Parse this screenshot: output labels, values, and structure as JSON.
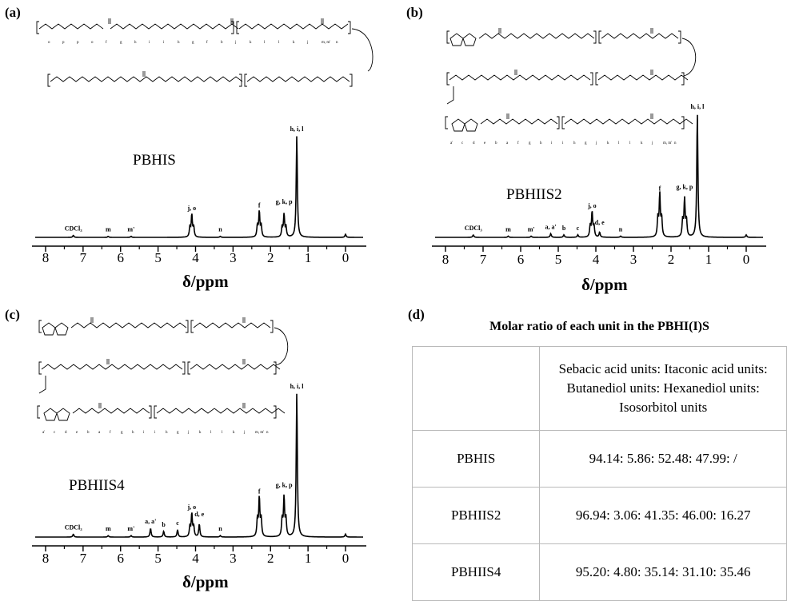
{
  "panels": [
    {
      "label": "(a)",
      "sample": "PBHIS",
      "axis_title": "δ/ppm",
      "ticks": [
        "8",
        "7",
        "6",
        "5",
        "4",
        "3",
        "2",
        "1",
        "0"
      ],
      "peak_labels": [
        {
          "text": "CDCl₃",
          "ppm": 7.26
        },
        {
          "text": "m",
          "ppm": 6.33
        },
        {
          "text": "m'",
          "ppm": 5.72
        },
        {
          "text": "j, o",
          "ppm": 4.1
        },
        {
          "text": "n",
          "ppm": 3.34
        },
        {
          "text": "f",
          "ppm": 2.3
        },
        {
          "text": "g, k, p",
          "ppm": 1.64
        },
        {
          "text": "h, i, l",
          "ppm": 1.3
        }
      ]
    },
    {
      "label": "(b)",
      "sample": "PBHIIS2",
      "axis_title": "δ/ppm",
      "ticks": [
        "8",
        "7",
        "6",
        "5",
        "4",
        "3",
        "2",
        "1",
        "0"
      ],
      "peak_labels": [
        {
          "text": "CDCl₃",
          "ppm": 7.26
        },
        {
          "text": "m",
          "ppm": 6.33
        },
        {
          "text": "m'",
          "ppm": 5.72
        },
        {
          "text": "a, a'",
          "ppm": 5.2
        },
        {
          "text": "b",
          "ppm": 4.85
        },
        {
          "text": "c",
          "ppm": 4.48
        },
        {
          "text": "j, o",
          "ppm": 4.1
        },
        {
          "text": "d, e",
          "ppm": 3.9
        },
        {
          "text": "n",
          "ppm": 3.34
        },
        {
          "text": "f",
          "ppm": 2.3
        },
        {
          "text": "g, k, p",
          "ppm": 1.64
        },
        {
          "text": "h, i, l",
          "ppm": 1.3
        }
      ]
    },
    {
      "label": "(c)",
      "sample": "PBHIIS4",
      "axis_title": "δ/ppm",
      "ticks": [
        "8",
        "7",
        "6",
        "5",
        "4",
        "3",
        "2",
        "1",
        "0"
      ],
      "peak_labels": [
        {
          "text": "CDCl₃",
          "ppm": 7.26
        },
        {
          "text": "m",
          "ppm": 6.33
        },
        {
          "text": "m'",
          "ppm": 5.72
        },
        {
          "text": "a, a'",
          "ppm": 5.2
        },
        {
          "text": "b",
          "ppm": 4.85
        },
        {
          "text": "c",
          "ppm": 4.48
        },
        {
          "text": "j, o",
          "ppm": 4.1
        },
        {
          "text": "d, e",
          "ppm": 3.9
        },
        {
          "text": "n",
          "ppm": 3.34
        },
        {
          "text": "f",
          "ppm": 2.3
        },
        {
          "text": "g, k, p",
          "ppm": 1.64
        },
        {
          "text": "h, i, l",
          "ppm": 1.3
        }
      ]
    }
  ],
  "structure_labels": {
    "a": [
      "o",
      "p",
      "p",
      "o",
      "f",
      "g",
      "h",
      "i",
      "i",
      "h",
      "g",
      "f",
      "b",
      "j",
      "k",
      "l",
      "l",
      "k",
      "j",
      "m, m'",
      "n"
    ],
    "b": [
      "a'",
      "c",
      "d",
      "e",
      "b",
      "a",
      "f",
      "g",
      "h",
      "i",
      "i",
      "h",
      "g",
      "j",
      "k",
      "l",
      "l",
      "k",
      "j",
      "m, m'",
      "n"
    ],
    "c": [
      "a'",
      "c",
      "d",
      "e",
      "b",
      "a",
      "f",
      "g",
      "h",
      "i",
      "i",
      "h",
      "g",
      "j",
      "k",
      "l",
      "l",
      "k",
      "j",
      "m, m'",
      "n"
    ]
  },
  "table": {
    "label": "(d)",
    "title": "Molar ratio of each unit in the PBHI(I)S",
    "header": [
      "",
      "Sebacic acid units: Itaconic acid units: Butanediol units: Hexanediol units: Isosorbitol units"
    ],
    "rows": [
      {
        "sample": "PBHIS",
        "ratio": "94.14: 5.86: 52.48: 47.99: /"
      },
      {
        "sample": "PBHIIS2",
        "ratio": "96.94: 3.06: 41.35: 46.00: 16.27"
      },
      {
        "sample": "PBHIIS4",
        "ratio": "95.20: 4.80: 35.14: 31.10: 35.46"
      }
    ]
  },
  "chart_data": [
    {
      "type": "line",
      "title": "PBHIS",
      "xlabel": "δ/ppm",
      "ylabel": "",
      "xlim": [
        8,
        0
      ],
      "x_reversed": true,
      "x_ticks": [
        8,
        7,
        6,
        5,
        4,
        3,
        2,
        1,
        0
      ],
      "peaks": [
        {
          "ppm": 7.26,
          "height": 0.02,
          "label": "CDCl₃"
        },
        {
          "ppm": 6.33,
          "height": 0.01,
          "label": "m"
        },
        {
          "ppm": 5.72,
          "height": 0.01,
          "label": "m'"
        },
        {
          "ppm": 4.1,
          "height": 0.22,
          "label": "j, o"
        },
        {
          "ppm": 3.34,
          "height": 0.01,
          "label": "n"
        },
        {
          "ppm": 2.3,
          "height": 0.25,
          "label": "f"
        },
        {
          "ppm": 1.64,
          "height": 0.22,
          "label": "g, k, p"
        },
        {
          "ppm": 1.3,
          "height": 1.0,
          "label": "h, i, l"
        },
        {
          "ppm": 0.0,
          "height": 0.03,
          "label": ""
        }
      ]
    },
    {
      "type": "line",
      "title": "PBHIIS2",
      "xlabel": "δ/ppm",
      "ylabel": "",
      "xlim": [
        8,
        0
      ],
      "x_reversed": true,
      "x_ticks": [
        8,
        7,
        6,
        5,
        4,
        3,
        2,
        1,
        0
      ],
      "peaks": [
        {
          "ppm": 7.26,
          "height": 0.02,
          "label": "CDCl₃"
        },
        {
          "ppm": 6.33,
          "height": 0.01,
          "label": "m"
        },
        {
          "ppm": 5.72,
          "height": 0.01,
          "label": "m'"
        },
        {
          "ppm": 5.2,
          "height": 0.03,
          "label": "a, a'"
        },
        {
          "ppm": 4.85,
          "height": 0.02,
          "label": "b"
        },
        {
          "ppm": 4.48,
          "height": 0.02,
          "label": "c"
        },
        {
          "ppm": 4.1,
          "height": 0.2,
          "label": "j, o"
        },
        {
          "ppm": 3.9,
          "height": 0.04,
          "label": "d, e"
        },
        {
          "ppm": 3.34,
          "height": 0.01,
          "label": "n"
        },
        {
          "ppm": 2.3,
          "height": 0.34,
          "label": "f"
        },
        {
          "ppm": 1.64,
          "height": 0.3,
          "label": "g, k, p"
        },
        {
          "ppm": 1.3,
          "height": 1.0,
          "label": "h, i, l"
        },
        {
          "ppm": 0.0,
          "height": 0.02,
          "label": ""
        }
      ]
    },
    {
      "type": "line",
      "title": "PBHIIS4",
      "xlabel": "δ/ppm",
      "ylabel": "",
      "xlim": [
        8,
        0
      ],
      "x_reversed": true,
      "x_ticks": [
        8,
        7,
        6,
        5,
        4,
        3,
        2,
        1,
        0
      ],
      "peaks": [
        {
          "ppm": 7.26,
          "height": 0.02,
          "label": "CDCl₃"
        },
        {
          "ppm": 6.33,
          "height": 0.01,
          "label": "m"
        },
        {
          "ppm": 5.72,
          "height": 0.01,
          "label": "m'"
        },
        {
          "ppm": 5.2,
          "height": 0.06,
          "label": "a, a'"
        },
        {
          "ppm": 4.85,
          "height": 0.04,
          "label": "b"
        },
        {
          "ppm": 4.48,
          "height": 0.05,
          "label": "c"
        },
        {
          "ppm": 4.1,
          "height": 0.16,
          "label": "j, o"
        },
        {
          "ppm": 3.9,
          "height": 0.09,
          "label": "d, e"
        },
        {
          "ppm": 3.34,
          "height": 0.01,
          "label": "n"
        },
        {
          "ppm": 2.3,
          "height": 0.27,
          "label": "f"
        },
        {
          "ppm": 1.64,
          "height": 0.27,
          "label": "g, k, p"
        },
        {
          "ppm": 1.3,
          "height": 1.0,
          "label": "h, i, l"
        },
        {
          "ppm": 0.0,
          "height": 0.02,
          "label": ""
        }
      ]
    }
  ]
}
